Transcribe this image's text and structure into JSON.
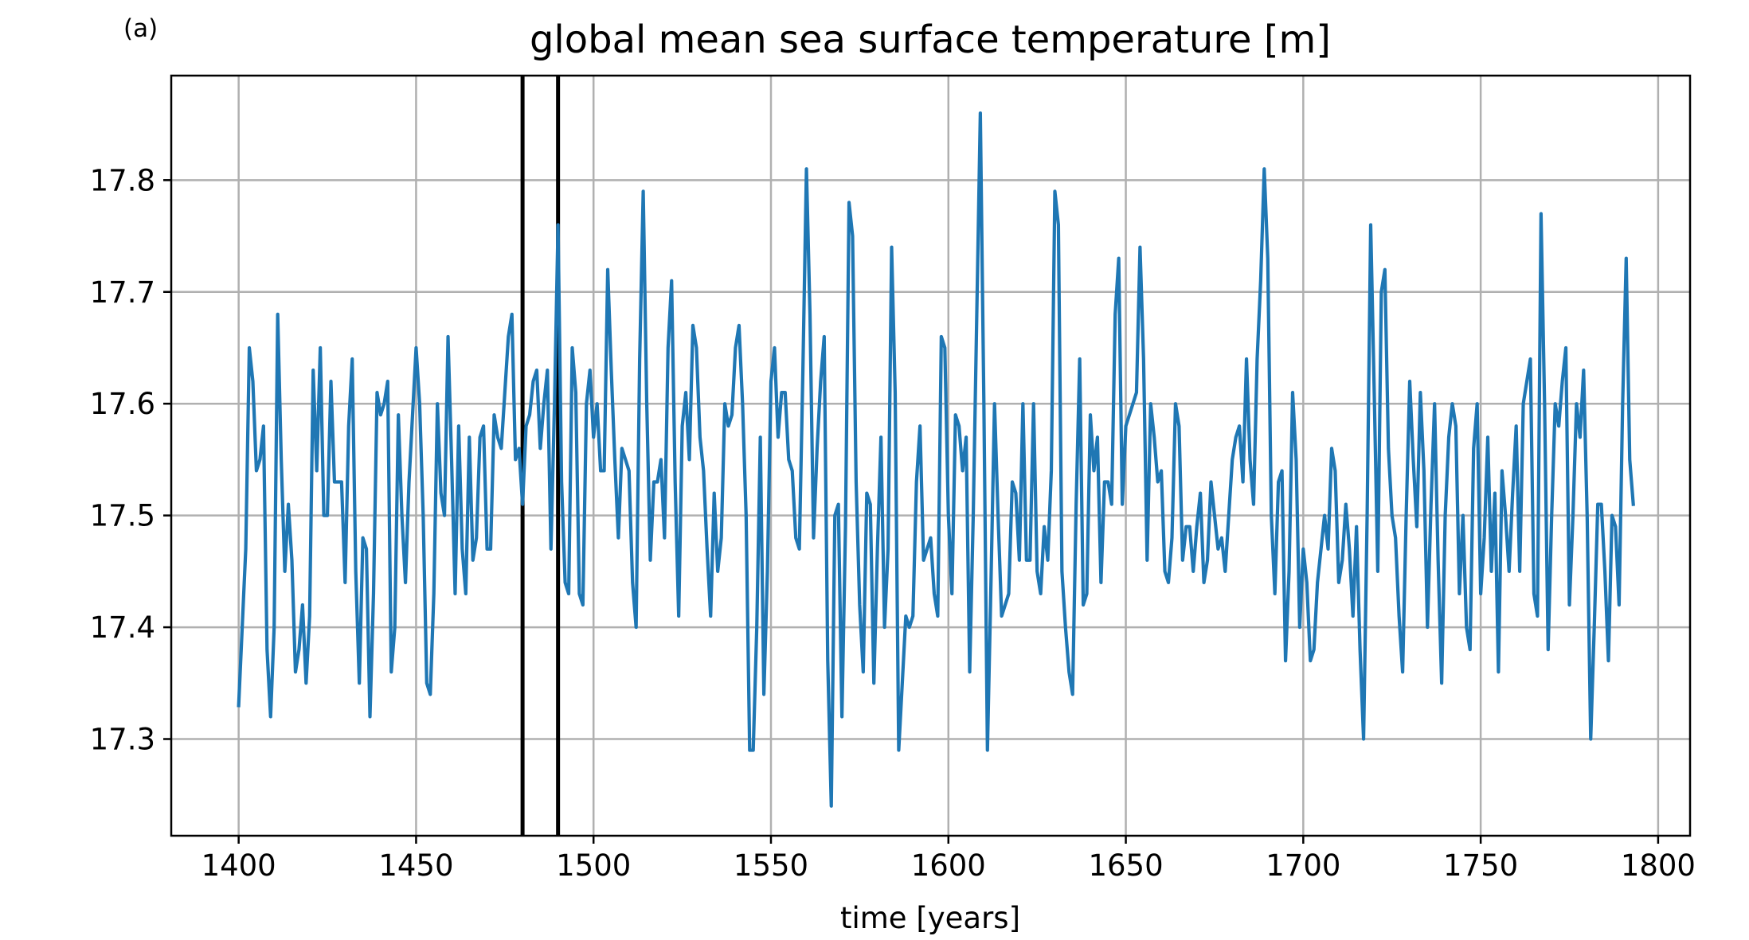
{
  "chart_data": {
    "type": "line",
    "panel_label": "(a)",
    "title": "global mean sea surface temperature [m]",
    "xlabel": "time [years]",
    "ylabel": "",
    "xlim": [
      1381,
      1809
    ],
    "ylim": [
      17.2135,
      17.8935
    ],
    "xticks": [
      1400,
      1450,
      1500,
      1550,
      1600,
      1650,
      1700,
      1750,
      1800
    ],
    "yticks": [
      17.3,
      17.4,
      17.5,
      17.6,
      17.7,
      17.8
    ],
    "ytick_labels": [
      "17.3",
      "17.4",
      "17.5",
      "17.6",
      "17.7",
      "17.8"
    ],
    "grid": true,
    "line_color": "#1f77b4",
    "vertical_lines": [
      1480,
      1490
    ],
    "vertical_line_color": "#000000",
    "series": [
      {
        "x_start": 1400,
        "x_step": 1,
        "values": [
          17.33,
          17.4,
          17.47,
          17.65,
          17.62,
          17.54,
          17.55,
          17.58,
          17.38,
          17.32,
          17.4,
          17.68,
          17.55,
          17.45,
          17.51,
          17.46,
          17.36,
          17.38,
          17.42,
          17.35,
          17.41,
          17.63,
          17.54,
          17.65,
          17.5,
          17.5,
          17.62,
          17.53,
          17.53,
          17.53,
          17.44,
          17.58,
          17.64,
          17.45,
          17.35,
          17.48,
          17.47,
          17.32,
          17.43,
          17.61,
          17.59,
          17.6,
          17.62,
          17.36,
          17.4,
          17.59,
          17.5,
          17.44,
          17.53,
          17.59,
          17.65,
          17.6,
          17.5,
          17.35,
          17.34,
          17.43,
          17.6,
          17.52,
          17.5,
          17.66,
          17.55,
          17.43,
          17.58,
          17.47,
          17.43,
          17.57,
          17.46,
          17.48,
          17.57,
          17.58,
          17.47,
          17.47,
          17.59,
          17.57,
          17.56,
          17.61,
          17.66,
          17.68,
          17.55,
          17.56,
          17.51,
          17.58,
          17.59,
          17.62,
          17.63,
          17.56,
          17.6,
          17.63,
          17.47,
          17.6,
          17.76,
          17.53,
          17.44,
          17.43,
          17.65,
          17.61,
          17.43,
          17.42,
          17.6,
          17.63,
          17.57,
          17.6,
          17.54,
          17.54,
          17.72,
          17.63,
          17.55,
          17.48,
          17.56,
          17.55,
          17.54,
          17.44,
          17.4,
          17.64,
          17.79,
          17.6,
          17.46,
          17.53,
          17.53,
          17.55,
          17.48,
          17.65,
          17.71,
          17.53,
          17.41,
          17.58,
          17.61,
          17.55,
          17.67,
          17.65,
          17.57,
          17.54,
          17.47,
          17.41,
          17.52,
          17.45,
          17.48,
          17.6,
          17.58,
          17.59,
          17.65,
          17.67,
          17.6,
          17.5,
          17.29,
          17.29,
          17.4,
          17.57,
          17.34,
          17.45,
          17.62,
          17.65,
          17.57,
          17.61,
          17.61,
          17.55,
          17.54,
          17.48,
          17.47,
          17.63,
          17.81,
          17.68,
          17.48,
          17.56,
          17.62,
          17.66,
          17.37,
          17.24,
          17.5,
          17.51,
          17.32,
          17.49,
          17.78,
          17.75,
          17.53,
          17.42,
          17.36,
          17.52,
          17.51,
          17.35,
          17.47,
          17.57,
          17.4,
          17.47,
          17.74,
          17.61,
          17.29,
          17.35,
          17.41,
          17.4,
          17.41,
          17.53,
          17.58,
          17.46,
          17.47,
          17.48,
          17.43,
          17.41,
          17.66,
          17.65,
          17.5,
          17.43,
          17.59,
          17.58,
          17.54,
          17.57,
          17.36,
          17.5,
          17.68,
          17.86,
          17.6,
          17.29,
          17.44,
          17.6,
          17.5,
          17.41,
          17.42,
          17.43,
          17.53,
          17.52,
          17.46,
          17.6,
          17.46,
          17.46,
          17.6,
          17.45,
          17.43,
          17.49,
          17.46,
          17.54,
          17.79,
          17.76,
          17.45,
          17.4,
          17.36,
          17.34,
          17.51,
          17.64,
          17.42,
          17.43,
          17.59,
          17.54,
          17.57,
          17.44,
          17.53,
          17.53,
          17.51,
          17.68,
          17.73,
          17.51,
          17.58,
          17.59,
          17.6,
          17.61,
          17.74,
          17.64,
          17.46,
          17.6,
          17.57,
          17.53,
          17.54,
          17.45,
          17.44,
          17.48,
          17.6,
          17.58,
          17.46,
          17.49,
          17.49,
          17.45,
          17.49,
          17.52,
          17.44,
          17.46,
          17.53,
          17.5,
          17.47,
          17.48,
          17.45,
          17.5,
          17.55,
          17.57,
          17.58,
          17.53,
          17.64,
          17.55,
          17.51,
          17.64,
          17.71,
          17.81,
          17.73,
          17.5,
          17.43,
          17.53,
          17.54,
          17.37,
          17.45,
          17.61,
          17.55,
          17.4,
          17.47,
          17.44,
          17.37,
          17.38,
          17.44,
          17.47,
          17.5,
          17.47,
          17.56,
          17.54,
          17.44,
          17.46,
          17.51,
          17.47,
          17.41,
          17.49,
          17.38,
          17.3,
          17.5,
          17.76,
          17.61,
          17.45,
          17.7,
          17.72,
          17.56,
          17.5,
          17.48,
          17.41,
          17.36,
          17.5,
          17.62,
          17.55,
          17.49,
          17.61,
          17.54,
          17.4,
          17.51,
          17.6,
          17.46,
          17.35,
          17.5,
          17.57,
          17.6,
          17.58,
          17.43,
          17.5,
          17.4,
          17.38,
          17.56,
          17.6,
          17.43,
          17.48,
          17.57,
          17.45,
          17.52,
          17.36,
          17.54,
          17.5,
          17.45,
          17.52,
          17.58,
          17.45,
          17.6,
          17.62,
          17.64,
          17.43,
          17.41,
          17.77,
          17.6,
          17.38,
          17.5,
          17.6,
          17.58,
          17.62,
          17.65,
          17.42,
          17.5,
          17.6,
          17.57,
          17.63,
          17.5,
          17.3,
          17.4,
          17.51,
          17.51,
          17.45,
          17.37,
          17.5,
          17.49,
          17.42,
          17.6,
          17.73,
          17.55,
          17.51
        ]
      }
    ]
  }
}
